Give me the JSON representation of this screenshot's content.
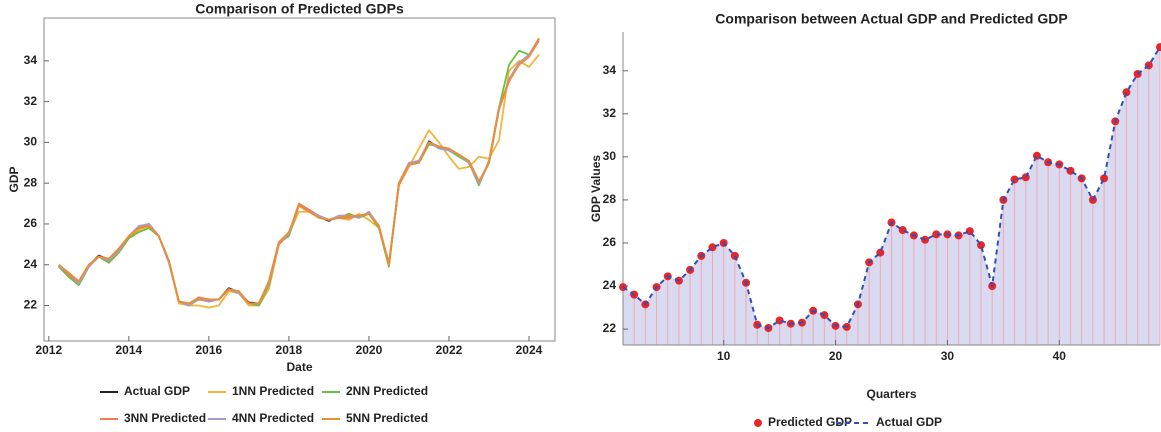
{
  "chart_data": [
    {
      "type": "line",
      "title": "Comparison of Predicted GDPs",
      "x_label": "Date",
      "y_label": "GDP",
      "x": [
        2012.25,
        2012.5,
        2012.75,
        2013,
        2013.25,
        2013.5,
        2013.75,
        2014,
        2014.25,
        2014.5,
        2014.75,
        2015,
        2015.25,
        2015.5,
        2015.75,
        2016,
        2016.25,
        2016.5,
        2016.75,
        2017,
        2017.25,
        2017.5,
        2017.75,
        2018,
        2018.25,
        2018.5,
        2018.75,
        2019,
        2019.25,
        2019.5,
        2019.75,
        2020,
        2020.25,
        2020.5,
        2020.75,
        2021,
        2021.25,
        2021.5,
        2021.75,
        2022,
        2022.25,
        2022.5,
        2022.75,
        2023,
        2023.25,
        2023.5,
        2023.75,
        2024,
        2024.25
      ],
      "xlim": [
        2011.88,
        2024.65
      ],
      "xticks": [
        2012,
        2014,
        2016,
        2018,
        2020,
        2022,
        2024
      ],
      "ylim": [
        20.26,
        36.1
      ],
      "yticks": [
        22,
        24,
        26,
        28,
        30,
        32,
        34
      ],
      "frame": true,
      "legend": "bottom",
      "series": [
        {
          "name": "Actual GDP",
          "color": "#222222",
          "style": "solid",
          "values": [
            23.95,
            23.6,
            23.15,
            23.95,
            24.45,
            24.25,
            24.75,
            25.4,
            25.8,
            26.0,
            25.4,
            24.15,
            22.2,
            22.05,
            22.4,
            22.25,
            22.3,
            22.85,
            22.65,
            22.15,
            22.1,
            23.15,
            25.1,
            25.55,
            26.95,
            26.6,
            26.35,
            26.15,
            26.4,
            26.4,
            26.35,
            26.55,
            25.9,
            24.0,
            28.0,
            28.95,
            29.05,
            30.05,
            29.75,
            29.65,
            29.35,
            29.0,
            28.0,
            29.0,
            31.65,
            33.0,
            33.85,
            34.25,
            35.1
          ]
        },
        {
          "name": "1NN Predicted",
          "color": "#f2b43a",
          "style": "solid",
          "values": [
            23.9,
            23.5,
            23.1,
            23.9,
            24.4,
            24.1,
            24.6,
            25.3,
            25.7,
            25.9,
            25.4,
            24.2,
            22.1,
            22.0,
            22.0,
            21.9,
            22.0,
            22.7,
            22.6,
            22.0,
            22.0,
            22.8,
            25.0,
            25.5,
            26.6,
            26.6,
            26.4,
            26.2,
            26.3,
            26.2,
            26.5,
            26.2,
            25.8,
            24.1,
            27.9,
            28.8,
            29.7,
            30.6,
            30.0,
            29.3,
            28.7,
            28.8,
            29.3,
            29.2,
            30.1,
            33.5,
            34.0,
            33.7,
            34.3
          ]
        },
        {
          "name": "2NN Predicted",
          "color": "#6cbf3c",
          "style": "solid",
          "values": [
            23.9,
            23.4,
            23.0,
            23.9,
            24.4,
            24.1,
            24.6,
            25.3,
            25.6,
            25.8,
            25.4,
            24.2,
            22.2,
            22.0,
            22.3,
            22.2,
            22.3,
            22.8,
            22.6,
            22.1,
            22.0,
            23.0,
            25.1,
            25.4,
            26.9,
            26.6,
            26.4,
            26.2,
            26.3,
            26.5,
            26.3,
            26.5,
            25.8,
            23.9,
            28.0,
            28.9,
            29.0,
            29.9,
            29.8,
            29.6,
            29.3,
            29.0,
            27.9,
            29.1,
            31.7,
            33.8,
            34.5,
            34.3,
            35.0
          ]
        },
        {
          "name": "3NN Predicted",
          "color": "#f07c5a",
          "style": "solid",
          "values": [
            24.0,
            23.5,
            23.1,
            24.0,
            24.4,
            24.2,
            24.7,
            25.4,
            25.8,
            26.0,
            25.4,
            24.2,
            22.2,
            22.1,
            22.3,
            22.2,
            22.3,
            22.8,
            22.7,
            22.1,
            22.1,
            23.1,
            25.0,
            25.5,
            27.0,
            26.7,
            26.4,
            26.2,
            26.3,
            26.3,
            26.4,
            26.5,
            25.9,
            24.0,
            27.9,
            28.9,
            29.1,
            30.0,
            29.8,
            29.6,
            29.4,
            29.0,
            28.0,
            29.0,
            31.6,
            33.0,
            33.9,
            34.2,
            35.0
          ]
        },
        {
          "name": "4NN Predicted",
          "color": "#a99bd0",
          "style": "solid",
          "values": [
            23.9,
            23.6,
            23.1,
            23.9,
            24.4,
            24.2,
            24.7,
            25.4,
            25.9,
            26.0,
            25.4,
            24.1,
            22.2,
            22.0,
            22.4,
            22.2,
            22.3,
            22.8,
            22.6,
            22.1,
            22.1,
            23.1,
            25.1,
            25.5,
            26.9,
            26.6,
            26.4,
            26.2,
            26.4,
            26.4,
            26.3,
            26.6,
            25.9,
            24.0,
            28.0,
            29.0,
            29.1,
            30.0,
            29.7,
            29.6,
            29.4,
            29.0,
            28.0,
            29.0,
            31.6,
            33.1,
            33.9,
            34.3,
            35.1
          ]
        },
        {
          "name": "5NN Predicted",
          "color": "#f08c30",
          "style": "solid",
          "values": [
            24.0,
            23.6,
            23.2,
            24.0,
            24.4,
            24.3,
            24.8,
            25.4,
            25.8,
            25.9,
            25.4,
            24.2,
            22.2,
            22.1,
            22.4,
            22.3,
            22.3,
            22.8,
            22.7,
            22.1,
            22.1,
            23.2,
            25.1,
            25.6,
            26.9,
            26.6,
            26.3,
            26.2,
            26.3,
            26.4,
            26.4,
            26.5,
            25.9,
            24.0,
            28.0,
            28.9,
            29.0,
            30.0,
            29.8,
            29.7,
            29.4,
            29.1,
            28.1,
            29.0,
            31.7,
            33.0,
            33.8,
            34.2,
            35.1
          ]
        }
      ]
    },
    {
      "type": "line",
      "title": "Comparison between Actual GDP and Predicted GDP",
      "x_label": "Quarters",
      "y_label": "GDP Values",
      "x": [
        1,
        2,
        3,
        4,
        5,
        6,
        7,
        8,
        9,
        10,
        11,
        12,
        13,
        14,
        15,
        16,
        17,
        18,
        19,
        20,
        21,
        22,
        23,
        24,
        25,
        26,
        27,
        28,
        29,
        30,
        31,
        32,
        33,
        34,
        35,
        36,
        37,
        38,
        39,
        40,
        41,
        42,
        43,
        44,
        45,
        46,
        47,
        48,
        49
      ],
      "xlim": [
        1,
        49
      ],
      "xticks": [
        10,
        20,
        30,
        40
      ],
      "ylim": [
        21.26,
        35.8
      ],
      "yticks": [
        22,
        24,
        26,
        28,
        30,
        32,
        34
      ],
      "frame": false,
      "legend": "bottom",
      "fill_color": "#d9d9ef",
      "stem_color": "#f0a8b8",
      "series": [
        {
          "name": "Predicted GDP",
          "color": "#e8262a",
          "style": "points",
          "values": [
            23.95,
            23.6,
            23.15,
            23.95,
            24.45,
            24.25,
            24.75,
            25.4,
            25.8,
            26.0,
            25.4,
            24.15,
            22.2,
            22.05,
            22.4,
            22.25,
            22.3,
            22.85,
            22.65,
            22.15,
            22.1,
            23.15,
            25.1,
            25.55,
            26.95,
            26.6,
            26.35,
            26.15,
            26.4,
            26.4,
            26.35,
            26.55,
            25.9,
            24.0,
            28.0,
            28.95,
            29.05,
            30.05,
            29.75,
            29.65,
            29.35,
            29.0,
            28.0,
            29.0,
            31.65,
            33.0,
            33.85,
            34.25,
            35.1
          ]
        },
        {
          "name": "Actual GDP",
          "color": "#3050b8",
          "style": "dashed",
          "filled": true,
          "values": [
            23.95,
            23.6,
            23.15,
            23.95,
            24.45,
            24.25,
            24.75,
            25.4,
            25.8,
            26.0,
            25.4,
            24.15,
            22.2,
            22.05,
            22.4,
            22.25,
            22.3,
            22.85,
            22.65,
            22.15,
            22.1,
            23.15,
            25.1,
            25.55,
            26.95,
            26.6,
            26.35,
            26.15,
            26.4,
            26.4,
            26.35,
            26.55,
            25.9,
            24.0,
            28.0,
            28.95,
            29.05,
            30.05,
            29.75,
            29.65,
            29.35,
            29.0,
            28.0,
            29.0,
            31.65,
            33.0,
            33.85,
            34.25,
            35.1
          ]
        }
      ]
    }
  ]
}
